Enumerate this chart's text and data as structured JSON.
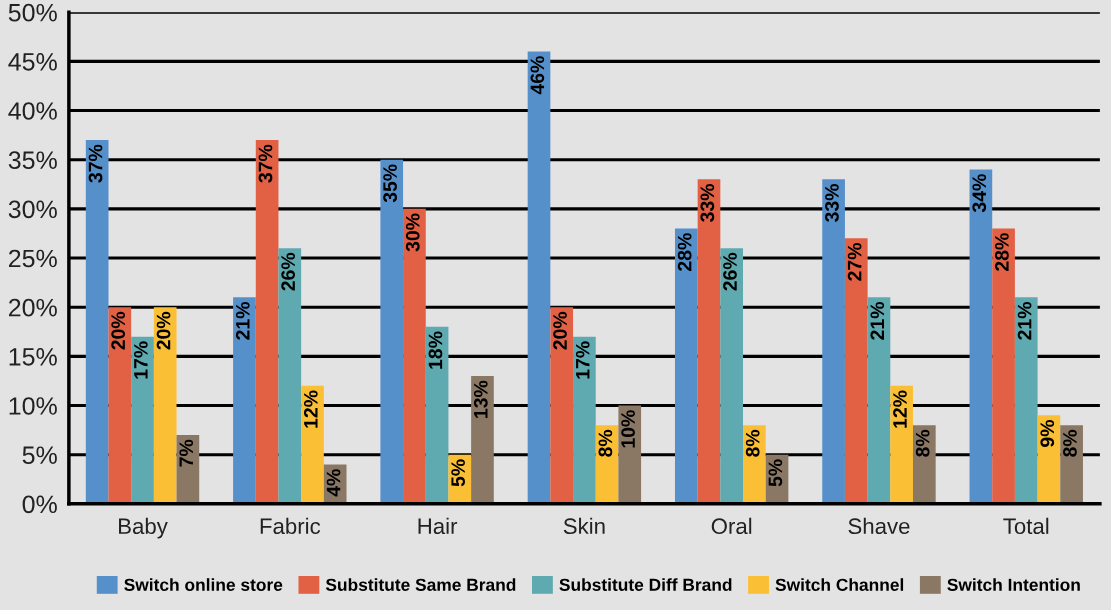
{
  "chart_data": {
    "type": "bar",
    "categories": [
      "Baby",
      "Fabric",
      "Hair",
      "Skin",
      "Oral",
      "Shave",
      "Total"
    ],
    "series": [
      {
        "name": "Switch online store",
        "color": "#5690cb",
        "values": [
          37,
          21,
          35,
          46,
          28,
          33,
          34
        ],
        "value_labels": [
          "37%",
          "21%",
          "35%",
          "46%",
          "28%",
          "33%",
          "34%"
        ]
      },
      {
        "name": "Substitute Same Brand",
        "color": "#e26044",
        "values": [
          20,
          37,
          30,
          20,
          33,
          27,
          28
        ],
        "value_labels": [
          "20%",
          "37%",
          "30%",
          "20%",
          "33%",
          "27%",
          "28%"
        ]
      },
      {
        "name": "Substitute Diff Brand",
        "color": "#5eaab0",
        "values": [
          17,
          26,
          18,
          17,
          26,
          21,
          21
        ],
        "value_labels": [
          "17%",
          "26%",
          "18%",
          "17%",
          "26%",
          "21%",
          "21%"
        ]
      },
      {
        "name": "Switch Channel",
        "color": "#fbbf35",
        "values": [
          20,
          12,
          5,
          8,
          8,
          12,
          9
        ],
        "value_labels": [
          "20%",
          "12%",
          "5%",
          "8%",
          "8%",
          "12%",
          "9%"
        ]
      },
      {
        "name": "Switch Intention",
        "color": "#8a7864",
        "values": [
          7,
          4,
          13,
          10,
          5,
          8,
          8
        ],
        "value_labels": [
          "7%",
          "4%",
          "13%",
          "10%",
          "5%",
          "8%",
          "8%"
        ]
      }
    ],
    "ylim": [
      0,
      50
    ],
    "yticks": [
      {
        "value": 0,
        "label": "0%"
      },
      {
        "value": 5,
        "label": "5%"
      },
      {
        "value": 10,
        "label": "10%"
      },
      {
        "value": 15,
        "label": "15%"
      },
      {
        "value": 20,
        "label": "20%"
      },
      {
        "value": 25,
        "label": "25%"
      },
      {
        "value": 30,
        "label": "30%"
      },
      {
        "value": 35,
        "label": "35%"
      },
      {
        "value": 40,
        "label": "40%"
      },
      {
        "value": 45,
        "label": "45%"
      },
      {
        "value": 50,
        "label": "50%"
      }
    ],
    "grid": "y",
    "legend": "bottom"
  }
}
